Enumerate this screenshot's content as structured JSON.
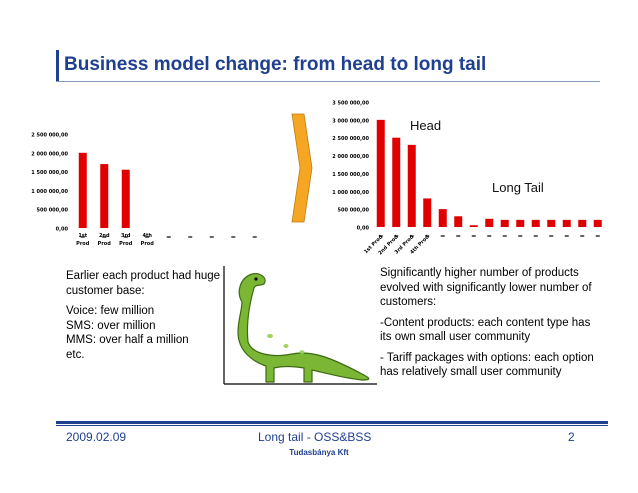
{
  "slide": {
    "title": "Business model change: from head to long tail",
    "left_text": {
      "lines1": [
        "Earlier each product had huge",
        "customer base:"
      ],
      "lines2": [
        "Voice: few million",
        "SMS: over million",
        "MMS: over half a million",
        "etc."
      ]
    },
    "right_text": {
      "p1": [
        "Significantly higher number of products",
        "evolved with significantly lower number of",
        "customers:"
      ],
      "p2": [
        "-Content products: each content type has",
        "its own small user community"
      ],
      "p3": [
        "- Tariff packages with options: each option",
        "has relatively small user community"
      ]
    },
    "annotations": {
      "head": "Head",
      "long_tail": "Long Tail"
    },
    "footer": {
      "date": "2009.02.09",
      "center": "Long tail - OSS&BSS",
      "page": "2",
      "company": "Tudasbánya Kft"
    },
    "colors": {
      "accent": "#1f3f8f",
      "bar": "#e00000",
      "arrow": "#f5a623"
    },
    "arrow_icon": "right-arrow-icon",
    "dinosaur_icon": "dinosaur-icon"
  },
  "chart_data": [
    {
      "type": "bar",
      "categories": [
        "1st Prod",
        "2nd Prod",
        "3rd Prod",
        "4th Prod",
        "",
        "",
        "",
        "",
        ""
      ],
      "values": [
        2000000,
        1700000,
        1550000,
        0,
        0,
        0,
        0,
        0,
        0
      ],
      "yticks": [
        "0,00",
        "500 000,00",
        "1 000 000,00",
        "1 500 000,00",
        "2 000 000,00",
        "2 500 000,00"
      ],
      "ylim": [
        0,
        2500000
      ]
    },
    {
      "type": "bar",
      "categories": [
        "1st Prod",
        "2nd Prod",
        "3rd Prod",
        "4th Prod",
        "",
        "",
        "",
        "",
        "",
        "",
        "",
        "",
        "",
        "",
        ""
      ],
      "values": [
        3000000,
        2500000,
        2300000,
        800000,
        500000,
        300000,
        50000,
        230000,
        200000,
        200000,
        200000,
        200000,
        200000,
        200000,
        200000
      ],
      "yticks": [
        "0,00",
        "500 000,00",
        "1 000 000,00",
        "1 500 000,00",
        "2 000 000,00",
        "2 500 000,00",
        "3 000 000,00",
        "3 500 000,00"
      ],
      "ylim": [
        0,
        3500000
      ]
    }
  ]
}
